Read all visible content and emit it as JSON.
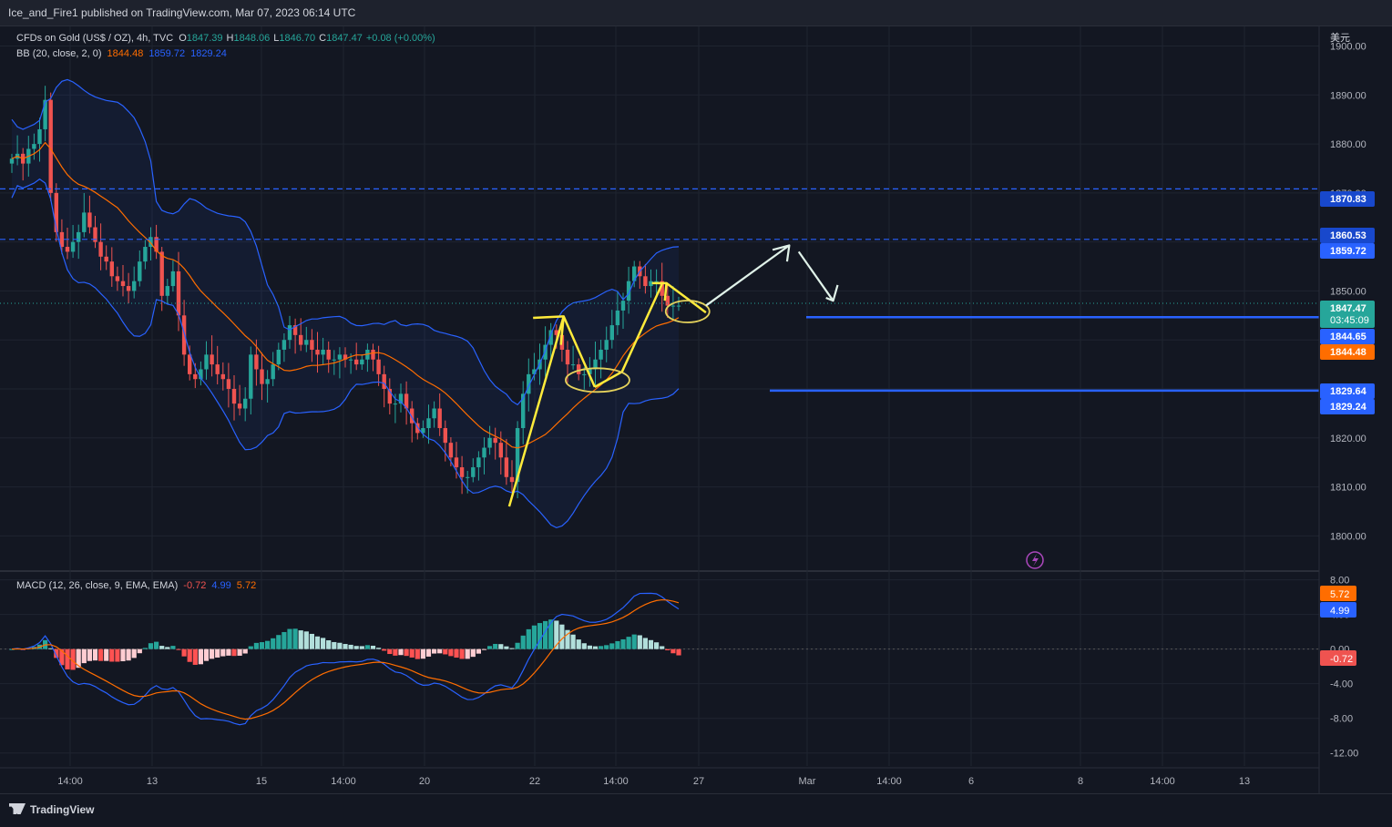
{
  "header": {
    "publisher": "Ice_and_Fire1 published on TradingView.com, Mar 07, 2023 06:14 UTC"
  },
  "legend": {
    "symbol": "CFDs on Gold (US$ / OZ), 4h, TVC",
    "o_label": "O",
    "o": "1847.39",
    "h_label": "H",
    "h": "1848.06",
    "l_label": "L",
    "l": "1846.70",
    "c_label": "C",
    "c": "1847.47",
    "change": "+0.08 (+0.00%)",
    "bb_label": "BB (20, close, 2, 0)",
    "bb_basis": "1844.48",
    "bb_upper": "1859.72",
    "bb_lower": "1829.24",
    "macd_label": "MACD (12, 26, close, 9, EMA, EMA)",
    "macd_hist": "-0.72",
    "macd_line": "4.99",
    "macd_signal": "5.72"
  },
  "footer": {
    "brand": "TradingView"
  },
  "colors": {
    "up": "#26a69a",
    "down": "#ef5350",
    "bb_band": "#2962ff",
    "bb_basis": "#ff6d00",
    "drawing": "#ffeb3b",
    "hline": "#2962ff"
  },
  "chart_data": [
    {
      "type": "candlestick",
      "currency": "美元",
      "y_ticks": [
        "1900.00",
        "1890.00",
        "1880.00",
        "1870.00",
        "1860.00",
        "1850.00",
        "1840.00",
        "1830.00",
        "1820.00",
        "1810.00",
        "1800.00"
      ],
      "ylim": [
        1793,
        1904
      ],
      "x_ticks": [
        "14:00",
        "13",
        "15",
        "14:00",
        "20",
        "22",
        "14:00",
        "27",
        "Mar",
        "14:00",
        "6",
        "8",
        "14:00",
        "13"
      ],
      "price_tags": [
        {
          "label": "1870.83",
          "kind": "dashed-line"
        },
        {
          "label": "1860.53",
          "kind": "dashed-line"
        },
        {
          "label": "1859.72",
          "kind": "bb-upper"
        },
        {
          "label": "1847.47",
          "kind": "last-price",
          "countdown": "03:45:09"
        },
        {
          "label": "1844.65",
          "kind": "horizontal-line"
        },
        {
          "label": "1844.48",
          "kind": "bb-basis"
        },
        {
          "label": "1829.64",
          "kind": "horizontal-line"
        },
        {
          "label": "1829.24",
          "kind": "bb-lower"
        }
      ],
      "close_path_approx": [
        1877,
        1878,
        1876,
        1879,
        1880,
        1883,
        1889,
        1870,
        1862,
        1859,
        1858,
        1860,
        1862,
        1866,
        1863,
        1860,
        1857,
        1856,
        1853,
        1852,
        1851,
        1850,
        1852,
        1856,
        1859,
        1861,
        1858,
        1849,
        1851,
        1854,
        1845,
        1837,
        1833,
        1832,
        1834,
        1837,
        1835,
        1833,
        1832,
        1830,
        1827,
        1826,
        1828,
        1837,
        1834,
        1831,
        1832,
        1835,
        1838,
        1840,
        1843,
        1841,
        1839,
        1840,
        1838,
        1837,
        1838,
        1836,
        1836,
        1837,
        1836,
        1836,
        1835,
        1836,
        1838,
        1836,
        1833,
        1830,
        1827,
        1827,
        1829,
        1826,
        1823,
        1821,
        1822,
        1824,
        1826,
        1822,
        1819,
        1816,
        1814,
        1812,
        1812,
        1814,
        1816,
        1818,
        1820,
        1819,
        1816,
        1812,
        1811,
        1822,
        1829,
        1833,
        1834,
        1836,
        1839,
        1842,
        1841,
        1838,
        1835,
        1835,
        1833,
        1833,
        1834,
        1836,
        1838,
        1840,
        1843,
        1846,
        1848,
        1852,
        1855,
        1853,
        1851,
        1852,
        1852,
        1849,
        1847,
        1847,
        1847
      ]
    },
    {
      "type": "line",
      "title": "MACD",
      "y_ticks": [
        "8.00",
        "4.00",
        "0.00",
        "-4.00",
        "-8.00",
        "-12.00"
      ],
      "ylim": [
        -13.5,
        8.8
      ],
      "series": [
        {
          "name": "MACD",
          "last": "4.99"
        },
        {
          "name": "Signal",
          "last": "5.72"
        },
        {
          "name": "Histogram",
          "last": "-0.72"
        }
      ]
    }
  ]
}
